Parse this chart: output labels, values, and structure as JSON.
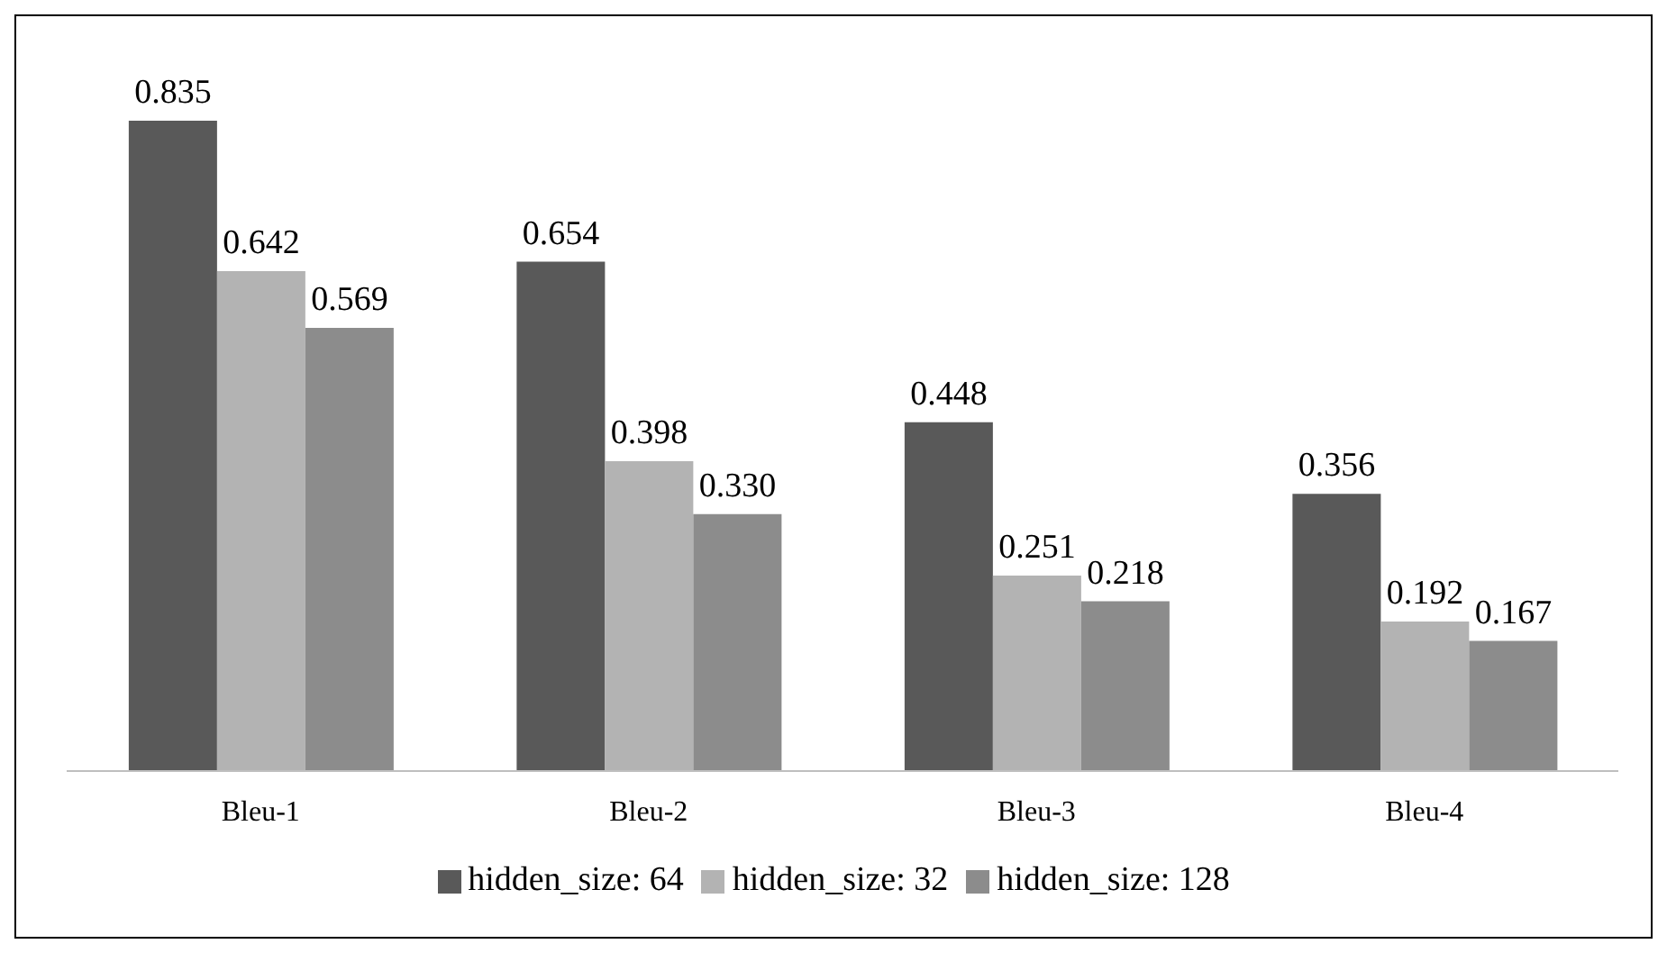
{
  "chart_data": {
    "type": "bar",
    "categories": [
      "Bleu-1",
      "Bleu-2",
      "Bleu-3",
      "Bleu-4"
    ],
    "series": [
      {
        "name": "hidden_size: 64",
        "color": "#595959",
        "values": [
          0.835,
          0.654,
          0.448,
          0.356
        ],
        "value_labels": [
          "0.835",
          "0.654",
          "0.448",
          "0.356"
        ]
      },
      {
        "name": "hidden_size: 32",
        "color": "#b3b3b3",
        "values": [
          0.642,
          0.398,
          0.251,
          0.192
        ],
        "value_labels": [
          "0.642",
          "0.398",
          "0.251",
          "0.192"
        ]
      },
      {
        "name": "hidden_size: 128",
        "color": "#8c8c8c",
        "values": [
          0.569,
          0.33,
          0.218,
          0.167
        ],
        "value_labels": [
          "0.569",
          "0.330",
          "0.218",
          "0.167"
        ]
      }
    ],
    "legend": "bottom",
    "grid": false
  }
}
